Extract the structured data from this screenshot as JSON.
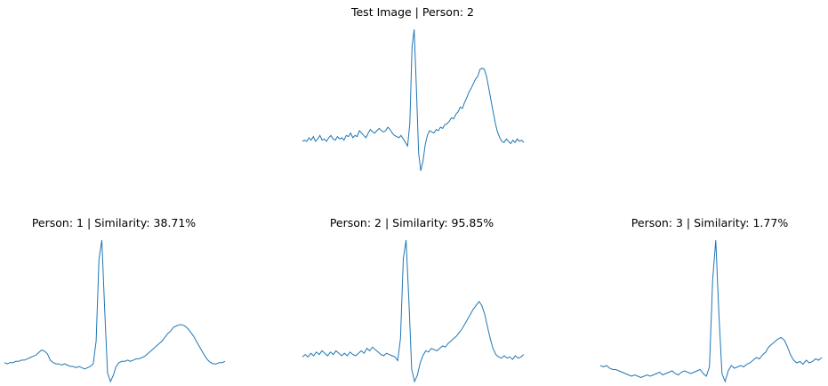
{
  "chart_data": [
    {
      "type": "line",
      "title": "Test Image | Person: 2",
      "color": "#1f77b4",
      "axes": "off",
      "grid": false,
      "values": [
        0.05,
        0.06,
        0.05,
        0.08,
        0.06,
        0.09,
        0.05,
        0.07,
        0.1,
        0.06,
        0.07,
        0.05,
        0.08,
        0.1,
        0.07,
        0.06,
        0.09,
        0.07,
        0.08,
        0.06,
        0.1,
        0.09,
        0.12,
        0.08,
        0.1,
        0.09,
        0.14,
        0.12,
        0.1,
        0.08,
        0.12,
        0.15,
        0.13,
        0.12,
        0.14,
        0.16,
        0.14,
        0.13,
        0.14,
        0.17,
        0.15,
        0.12,
        0.1,
        0.09,
        0.08,
        0.1,
        0.07,
        0.04,
        0.01,
        0.2,
        0.85,
        1.0,
        0.5,
        -0.05,
        -0.2,
        -0.12,
        0.02,
        0.1,
        0.14,
        0.13,
        0.12,
        0.15,
        0.14,
        0.17,
        0.16,
        0.19,
        0.2,
        0.22,
        0.25,
        0.24,
        0.28,
        0.3,
        0.34,
        0.33,
        0.38,
        0.42,
        0.47,
        0.5,
        0.54,
        0.58,
        0.6,
        0.66,
        0.67,
        0.66,
        0.6,
        0.5,
        0.4,
        0.3,
        0.2,
        0.13,
        0.08,
        0.05,
        0.04,
        0.07,
        0.05,
        0.03,
        0.06,
        0.04,
        0.07,
        0.05,
        0.06,
        0.04
      ]
    },
    {
      "type": "line",
      "title": "Person: 1 | Similarity: 38.71%",
      "color": "#1f77b4",
      "axes": "off",
      "grid": false,
      "values": [
        0.03,
        0.02,
        0.03,
        0.03,
        0.04,
        0.04,
        0.05,
        0.05,
        0.06,
        0.07,
        0.08,
        0.09,
        0.11,
        0.13,
        0.12,
        0.1,
        0.05,
        0.03,
        0.02,
        0.02,
        0.01,
        0.02,
        0.01,
        0.0,
        0.0,
        -0.01,
        0.0,
        -0.01,
        -0.02,
        -0.01,
        0.0,
        0.02,
        0.2,
        0.85,
        1.0,
        0.45,
        -0.05,
        -0.12,
        -0.07,
        0.0,
        0.03,
        0.04,
        0.04,
        0.05,
        0.04,
        0.05,
        0.06,
        0.06,
        0.07,
        0.08,
        0.1,
        0.12,
        0.14,
        0.16,
        0.18,
        0.2,
        0.23,
        0.26,
        0.28,
        0.31,
        0.32,
        0.33,
        0.33,
        0.32,
        0.3,
        0.27,
        0.24,
        0.2,
        0.16,
        0.12,
        0.08,
        0.05,
        0.03,
        0.02,
        0.02,
        0.03,
        0.03,
        0.04
      ]
    },
    {
      "type": "line",
      "title": "Person: 2 | Similarity: 95.85%",
      "color": "#1f77b4",
      "axes": "off",
      "grid": false,
      "values": [
        0.05,
        0.07,
        0.05,
        0.08,
        0.06,
        0.09,
        0.07,
        0.1,
        0.08,
        0.06,
        0.09,
        0.07,
        0.1,
        0.08,
        0.06,
        0.08,
        0.06,
        0.09,
        0.07,
        0.06,
        0.08,
        0.1,
        0.08,
        0.12,
        0.1,
        0.13,
        0.11,
        0.09,
        0.07,
        0.06,
        0.08,
        0.07,
        0.06,
        0.05,
        0.02,
        0.2,
        0.85,
        1.0,
        0.5,
        -0.05,
        -0.15,
        -0.1,
        0.0,
        0.06,
        0.1,
        0.09,
        0.12,
        0.11,
        0.1,
        0.12,
        0.14,
        0.13,
        0.16,
        0.18,
        0.2,
        0.22,
        0.25,
        0.28,
        0.32,
        0.36,
        0.4,
        0.44,
        0.47,
        0.5,
        0.47,
        0.4,
        0.3,
        0.2,
        0.12,
        0.07,
        0.05,
        0.04,
        0.06,
        0.04,
        0.05,
        0.03,
        0.06,
        0.04,
        0.05,
        0.07
      ]
    },
    {
      "type": "line",
      "title": "Person: 3 | Similarity: 1.77%",
      "color": "#1f77b4",
      "axes": "off",
      "grid": false,
      "values": [
        0.06,
        0.05,
        0.06,
        0.04,
        0.03,
        0.03,
        0.02,
        0.01,
        0.0,
        -0.01,
        -0.02,
        -0.01,
        -0.02,
        -0.03,
        -0.02,
        -0.01,
        -0.02,
        -0.01,
        0.0,
        0.01,
        -0.01,
        0.0,
        0.01,
        0.02,
        0.0,
        -0.01,
        0.01,
        0.02,
        0.01,
        0.0,
        0.01,
        0.02,
        0.03,
        0.0,
        -0.02,
        0.05,
        0.7,
        1.0,
        0.45,
        0.0,
        -0.06,
        0.02,
        0.06,
        0.04,
        0.05,
        0.06,
        0.05,
        0.07,
        0.08,
        0.1,
        0.12,
        0.11,
        0.14,
        0.16,
        0.2,
        0.22,
        0.24,
        0.26,
        0.27,
        0.25,
        0.2,
        0.14,
        0.1,
        0.08,
        0.09,
        0.07,
        0.1,
        0.08,
        0.09,
        0.11,
        0.1,
        0.12
      ]
    }
  ]
}
